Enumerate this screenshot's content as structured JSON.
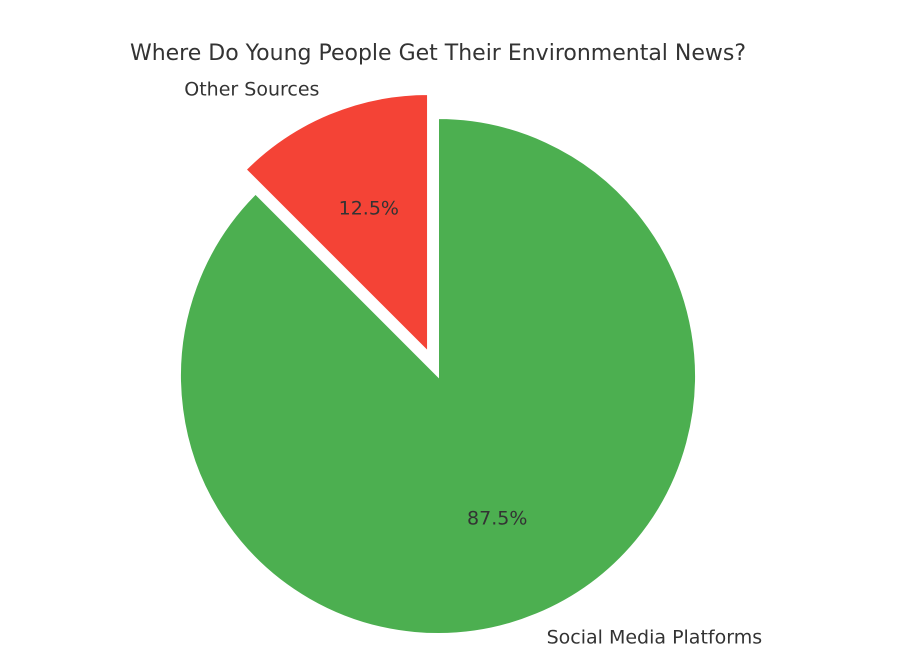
{
  "chart_data": {
    "type": "pie",
    "title": "Where Do Young People Get Their Environmental News?",
    "start_angle_deg": 90,
    "direction": "counterclockwise",
    "slices": [
      {
        "label": "Other Sources",
        "value": 12.5,
        "pct_label": "12.5%",
        "color": "#f44336",
        "exploded": true
      },
      {
        "label": "Social Media Platforms",
        "value": 87.5,
        "pct_label": "87.5%",
        "color": "#4caf50",
        "exploded": false
      }
    ]
  }
}
